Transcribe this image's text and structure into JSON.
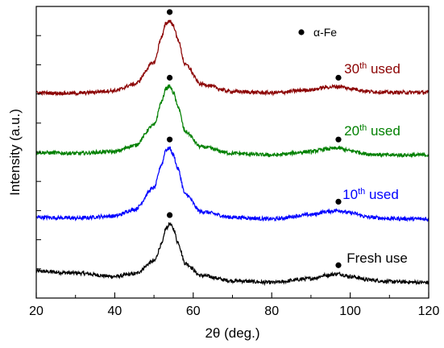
{
  "chart_data": {
    "type": "line",
    "xlabel": "2θ (deg.)",
    "ylabel": "Intensity (a.u.)",
    "xlim": [
      20,
      120
    ],
    "xticks": [
      20,
      40,
      60,
      80,
      100,
      120
    ],
    "y_ticks_labeled": false,
    "grid": false,
    "legend": {
      "marker": "●",
      "label": "α-Fe",
      "position": "top-right"
    },
    "series": [
      {
        "name": "Fresh use",
        "color": "#000000",
        "baseline": 0.0,
        "points": [
          [
            20,
            0.32
          ],
          [
            30,
            0.28
          ],
          [
            40,
            0.2
          ],
          [
            45,
            0.26
          ],
          [
            50,
            0.55
          ],
          [
            52,
            0.95
          ],
          [
            53,
            1.3
          ],
          [
            54,
            1.42
          ],
          [
            55,
            1.3
          ],
          [
            56,
            1.0
          ],
          [
            58,
            0.5
          ],
          [
            62,
            0.22
          ],
          [
            70,
            0.1
          ],
          [
            80,
            0.06
          ],
          [
            90,
            0.15
          ],
          [
            94,
            0.23
          ],
          [
            97,
            0.26
          ],
          [
            100,
            0.2
          ],
          [
            105,
            0.12
          ],
          [
            110,
            0.08
          ],
          [
            120,
            0.06
          ]
        ],
        "peak_markers": [
          54,
          97
        ]
      },
      {
        "name": "10th used",
        "color": "#0000ff",
        "baseline": 1.45,
        "points": [
          [
            20,
            0.12
          ],
          [
            30,
            0.1
          ],
          [
            40,
            0.15
          ],
          [
            45,
            0.3
          ],
          [
            50,
            0.8
          ],
          [
            52,
            1.35
          ],
          [
            53,
            1.68
          ],
          [
            54,
            1.72
          ],
          [
            55,
            1.55
          ],
          [
            56,
            1.25
          ],
          [
            58,
            0.65
          ],
          [
            62,
            0.25
          ],
          [
            70,
            0.12
          ],
          [
            80,
            0.08
          ],
          [
            90,
            0.18
          ],
          [
            94,
            0.25
          ],
          [
            97,
            0.28
          ],
          [
            100,
            0.22
          ],
          [
            105,
            0.12
          ],
          [
            110,
            0.09
          ],
          [
            120,
            0.08
          ]
        ],
        "peak_markers": [
          54,
          97
        ]
      },
      {
        "name": "20th used",
        "color": "#008000",
        "baseline": 2.95,
        "points": [
          [
            20,
            0.12
          ],
          [
            30,
            0.1
          ],
          [
            40,
            0.14
          ],
          [
            45,
            0.28
          ],
          [
            50,
            0.75
          ],
          [
            52,
            1.3
          ],
          [
            53,
            1.6
          ],
          [
            54,
            1.65
          ],
          [
            55,
            1.5
          ],
          [
            56,
            1.2
          ],
          [
            58,
            0.6
          ],
          [
            62,
            0.25
          ],
          [
            70,
            0.1
          ],
          [
            80,
            0.06
          ],
          [
            90,
            0.14
          ],
          [
            94,
            0.2
          ],
          [
            97,
            0.22
          ],
          [
            100,
            0.16
          ],
          [
            105,
            0.08
          ],
          [
            110,
            0.06
          ],
          [
            120,
            0.06
          ]
        ],
        "peak_markers": [
          54,
          97
        ]
      },
      {
        "name": "30th used",
        "color": "#8b0000",
        "baseline": 4.4,
        "points": [
          [
            20,
            0.05
          ],
          [
            30,
            0.04
          ],
          [
            40,
            0.1
          ],
          [
            45,
            0.25
          ],
          [
            50,
            0.75
          ],
          [
            52,
            1.35
          ],
          [
            53,
            1.65
          ],
          [
            54,
            1.72
          ],
          [
            55,
            1.6
          ],
          [
            56,
            1.3
          ],
          [
            58,
            0.7
          ],
          [
            62,
            0.25
          ],
          [
            70,
            0.08
          ],
          [
            80,
            0.05
          ],
          [
            90,
            0.12
          ],
          [
            94,
            0.18
          ],
          [
            97,
            0.2
          ],
          [
            100,
            0.15
          ],
          [
            105,
            0.08
          ],
          [
            110,
            0.06
          ],
          [
            120,
            0.06
          ]
        ],
        "peak_markers": [
          54,
          97
        ]
      }
    ],
    "series_labels": [
      {
        "text": "Fresh use",
        "color": "#000000"
      },
      {
        "base": "10",
        "sup": "th",
        "suffix": " used",
        "color": "#0000ff"
      },
      {
        "base": "20",
        "sup": "th",
        "suffix": " used",
        "color": "#008000"
      },
      {
        "base": "30",
        "sup": "th",
        "suffix": " used",
        "color": "#8b0000"
      }
    ]
  }
}
